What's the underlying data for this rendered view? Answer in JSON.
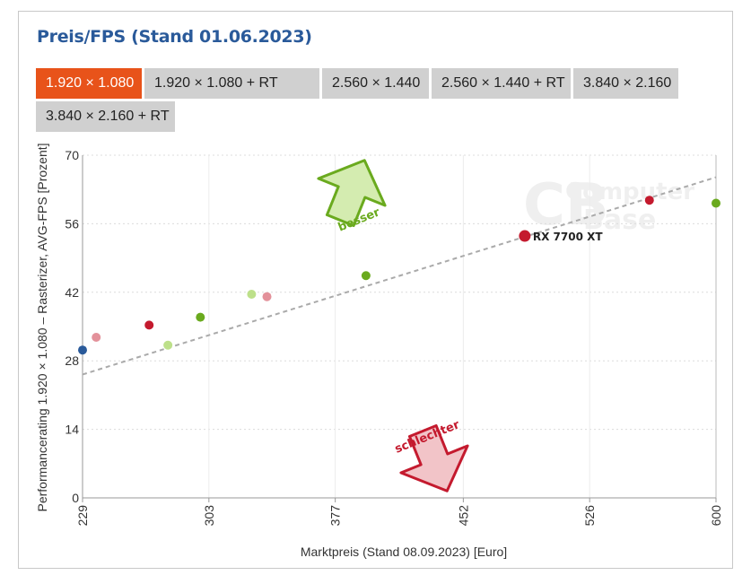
{
  "title": "Preis/FPS (Stand 01.06.2023)",
  "tabs": [
    {
      "label": "1.920 × 1.080",
      "active": true
    },
    {
      "label": "1.920 × 1.080 + RT",
      "active": false
    },
    {
      "label": "2.560 × 1.440",
      "active": false
    },
    {
      "label": "2.560 × 1.440 + RT",
      "active": false
    },
    {
      "label": "3.840 × 2.160",
      "active": false
    },
    {
      "label": "3.840 × 2.160 + RT",
      "active": false
    }
  ],
  "watermark": {
    "line1": "Computer",
    "line2": "Base",
    "logo_letters": "CB"
  },
  "arrows": {
    "better": "besser",
    "worse": "schlechter"
  },
  "colors": {
    "accent": "#e8531a",
    "title": "#2a5a9a",
    "green": "#6aaa1e",
    "light_green": "#bde08a",
    "red": "#c41a2e",
    "pink": "#e3919a",
    "blue": "#2a5a9a",
    "trend": "#aaaaaa"
  },
  "chart_data": {
    "type": "scatter",
    "title": "Preis/FPS (Stand 01.06.2023)",
    "xlabel": "Marktpreis (Stand 08.09.2023) [Euro]",
    "ylabel": "Performancerating 1.920 × 1.080 – Rasterizer, AVG-FPS [Prozent]",
    "xlim": [
      229,
      600
    ],
    "ylim": [
      0,
      70
    ],
    "xticks": [
      "229",
      "303",
      "377",
      "452",
      "526",
      "600"
    ],
    "yticks": [
      "0",
      "14",
      "28",
      "42",
      "56",
      "70"
    ],
    "grid": true,
    "points": [
      {
        "x": 229,
        "y": 30.2,
        "color": "blue"
      },
      {
        "x": 237,
        "y": 32.8,
        "color": "pink"
      },
      {
        "x": 268,
        "y": 35.3,
        "color": "red"
      },
      {
        "x": 279,
        "y": 31.2,
        "color": "light_green"
      },
      {
        "x": 298,
        "y": 36.9,
        "color": "green"
      },
      {
        "x": 328,
        "y": 41.6,
        "color": "light_green"
      },
      {
        "x": 337,
        "y": 41.1,
        "color": "pink"
      },
      {
        "x": 395,
        "y": 45.4,
        "color": "green"
      },
      {
        "x": 488,
        "y": 53.5,
        "color": "red",
        "label": "RX 7700 XT",
        "highlight": true
      },
      {
        "x": 561,
        "y": 60.8,
        "color": "red"
      },
      {
        "x": 600,
        "y": 60.2,
        "color": "green"
      }
    ],
    "trendline": {
      "x": [
        229,
        600
      ],
      "y": [
        25.2,
        65.5
      ]
    }
  }
}
